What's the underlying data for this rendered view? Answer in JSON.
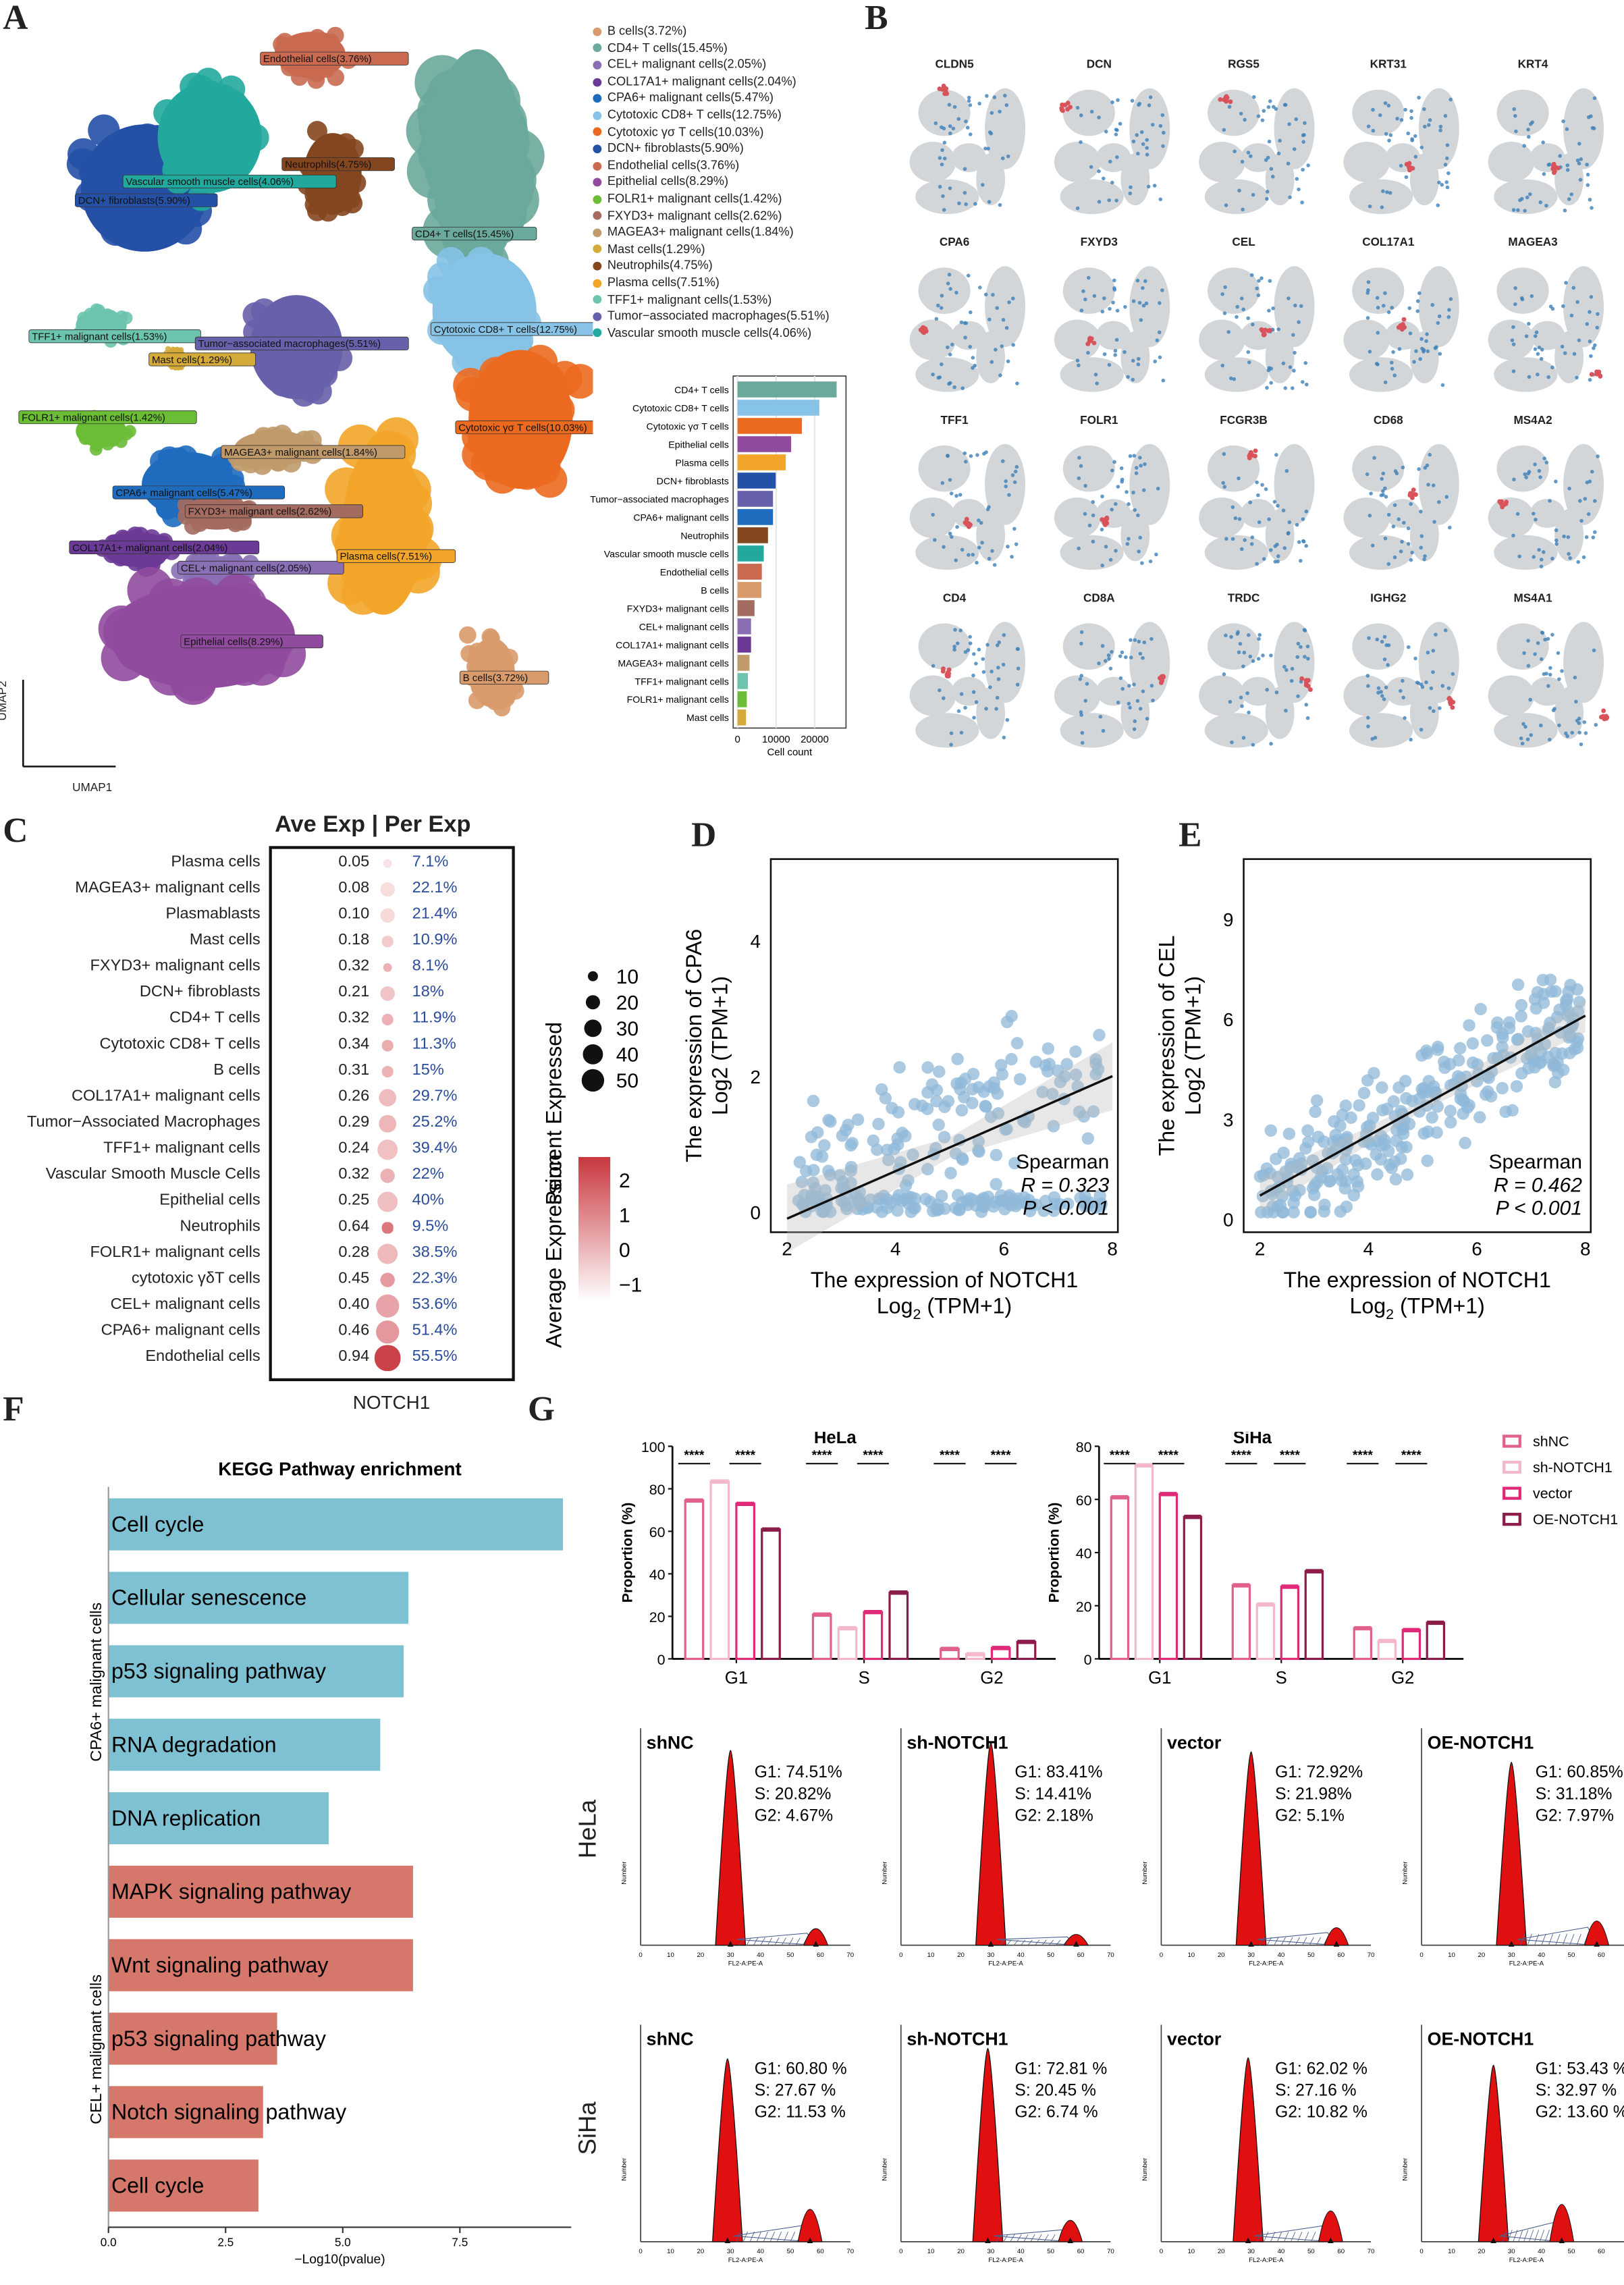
{
  "panel_labels": [
    "A",
    "B",
    "C",
    "D",
    "E",
    "F",
    "G"
  ],
  "panelA": {
    "umap_x_label": "UMAP1",
    "umap_y_label": "UMAP2",
    "clusters": [
      {
        "name": "B cells",
        "pct": "3.72%",
        "label": "B cells(3.72%)",
        "color": "#d99a6c"
      },
      {
        "name": "CD4+ T cells",
        "pct": "15.45%",
        "label": "CD4+ T cells(15.45%)",
        "color": "#6aa99b"
      },
      {
        "name": "CEL+ malignant cells",
        "pct": "2.05%",
        "label": "CEL+ malignant cells(2.05%)",
        "color": "#8a6fb5"
      },
      {
        "name": "COL17A1+ malignant cells",
        "pct": "2.04%",
        "label": "COL17A1+ malignant cells(2.04%)",
        "color": "#6b3a96"
      },
      {
        "name": "CPA6+ malignant cells",
        "pct": "5.47%",
        "label": "CPA6+ malignant cells(5.47%)",
        "color": "#1f6cbf"
      },
      {
        "name": "Cytotoxic CD8+ T cells",
        "pct": "12.75%",
        "label": "Cytotoxic CD8+ T cells(12.75%)",
        "color": "#86c3e6"
      },
      {
        "name": "Cytotoxic γσ T cells",
        "pct": "10.03%",
        "label": "Cytotoxic γσ T cells(10.03%)",
        "color": "#ec6a1f"
      },
      {
        "name": "DCN+ fibroblasts",
        "pct": "5.90%",
        "label": "DCN+ fibroblasts(5.90%)",
        "color": "#2450a6"
      },
      {
        "name": "Endothelial cells",
        "pct": "3.76%",
        "label": "Endothelial cells(3.76%)",
        "color": "#c96a50"
      },
      {
        "name": "Epithelial cells",
        "pct": "8.29%",
        "label": "Epithelial cells(8.29%)",
        "color": "#914b9e"
      },
      {
        "name": "FOLR1+ malignant cells",
        "pct": "1.42%",
        "label": "FOLR1+ malignant cells(1.42%)",
        "color": "#6bbd36"
      },
      {
        "name": "FXYD3+ malignant cells",
        "pct": "2.62%",
        "label": "FXYD3+ malignant cells(2.62%)",
        "color": "#a46c60"
      },
      {
        "name": "MAGEA3+ malignant cells",
        "pct": "1.84%",
        "label": "MAGEA3+ malignant cells(1.84%)",
        "color": "#c09a6a"
      },
      {
        "name": "Mast cells",
        "pct": "1.29%",
        "label": "Mast cells(1.29%)",
        "color": "#d4aa3a"
      },
      {
        "name": "Neutrophils",
        "pct": "4.75%",
        "label": "Neutrophils(4.75%)",
        "color": "#84461f"
      },
      {
        "name": "Plasma cells",
        "pct": "7.51%",
        "label": "Plasma cells(7.51%)",
        "color": "#f3a529"
      },
      {
        "name": "TFF1+ malignant cells",
        "pct": "1.53%",
        "label": "TFF1+ malignant cells(1.53%)",
        "color": "#6cc4ae"
      },
      {
        "name": "Tumor-associated macrophages",
        "pct": "5.51%",
        "label": "Tumor−associated macrophages(5.51%)",
        "color": "#6761ab"
      },
      {
        "name": "Vascular smooth muscle cells",
        "pct": "4.06%",
        "label": "Vascular smooth muscle cells(4.06%)",
        "color": "#22a89c"
      }
    ]
  },
  "chart_data": [
    {
      "id": "A-bar",
      "type": "bar",
      "orientation": "horizontal",
      "xlabel": "Cell count",
      "xticks": [
        "0",
        "10000",
        "20000"
      ],
      "xlim": [
        0,
        27000
      ],
      "categories": [
        "CD4+ T cells",
        "Cytotoxic CD8+ T cells",
        "Cytotoxic γσ T cells",
        "Epithelial cells",
        "Plasma cells",
        "DCN+ fibroblasts",
        "Tumor−associated macrophages",
        "CPA6+ malignant cells",
        "Neutrophils",
        "Vascular smooth muscle cells",
        "Endothelial cells",
        "B cells",
        "FXYD3+ malignant cells",
        "CEL+ malignant cells",
        "COL17A1+ malignant cells",
        "MAGEA3+ malignant cells",
        "TFF1+ malignant cells",
        "FOLR1+ malignant cells",
        "Mast cells"
      ],
      "values": [
        25700,
        21200,
        16700,
        13900,
        12500,
        9900,
        9200,
        9200,
        7900,
        6800,
        6300,
        6200,
        4400,
        3500,
        3500,
        3100,
        2700,
        2400,
        2200
      ],
      "colors": [
        "#6aa99b",
        "#86c3e6",
        "#ec6a1f",
        "#914b9e",
        "#f3a529",
        "#2450a6",
        "#6761ab",
        "#1f6cbf",
        "#84461f",
        "#22a89c",
        "#c96a50",
        "#d99a6c",
        "#a46c60",
        "#8a6fb5",
        "#6b3a96",
        "#c09a6a",
        "#6cc4ae",
        "#6bbd36",
        "#d4aa3a"
      ]
    },
    {
      "id": "B-features",
      "type": "scatter",
      "genes": [
        "CLDN5",
        "DCN",
        "RGS5",
        "KRT31",
        "KRT4",
        "CPA6",
        "FXYD3",
        "CEL",
        "COL17A1",
        "MAGEA3",
        "TFF1",
        "FOLR1",
        "FCGR3B",
        "CD68",
        "MS4A2",
        "CD4",
        "CD8A",
        "TRDC",
        "IGHG2",
        "MS4A1"
      ]
    },
    {
      "id": "C-dotplot",
      "type": "scatter",
      "title": "Ave Exp | Per Exp",
      "xlabel": "NOTCH1",
      "rows": [
        {
          "cell": "Plasma cells",
          "ave": "0.05",
          "per": "7.1%",
          "ave_v": 0.05,
          "per_v": 7.1
        },
        {
          "cell": "MAGEA3+ malignant cells",
          "ave": "0.08",
          "per": "22.1%",
          "ave_v": 0.08,
          "per_v": 22.1
        },
        {
          "cell": "Plasmablasts",
          "ave": "0.10",
          "per": "21.4%",
          "ave_v": 0.1,
          "per_v": 21.4
        },
        {
          "cell": "Mast cells",
          "ave": "0.18",
          "per": "10.9%",
          "ave_v": 0.18,
          "per_v": 10.9
        },
        {
          "cell": "FXYD3+ malignant cells",
          "ave": "0.32",
          "per": "8.1%",
          "ave_v": 0.32,
          "per_v": 8.1
        },
        {
          "cell": "DCN+ fibroblasts",
          "ave": "0.21",
          "per": "18%",
          "ave_v": 0.21,
          "per_v": 18
        },
        {
          "cell": "CD4+ T cells",
          "ave": "0.32",
          "per": "11.9%",
          "ave_v": 0.32,
          "per_v": 11.9
        },
        {
          "cell": "Cytotoxic CD8+ T cells",
          "ave": "0.34",
          "per": "11.3%",
          "ave_v": 0.34,
          "per_v": 11.3
        },
        {
          "cell": "B cells",
          "ave": "0.31",
          "per": "15%",
          "ave_v": 0.31,
          "per_v": 15
        },
        {
          "cell": "COL17A1+ malignant cells",
          "ave": "0.26",
          "per": "29.7%",
          "ave_v": 0.26,
          "per_v": 29.7
        },
        {
          "cell": "Tumor−Associated Macrophages",
          "ave": "0.29",
          "per": "25.2%",
          "ave_v": 0.29,
          "per_v": 25.2
        },
        {
          "cell": "TFF1+ malignant cells",
          "ave": "0.24",
          "per": "39.4%",
          "ave_v": 0.24,
          "per_v": 39.4
        },
        {
          "cell": "Vascular Smooth Muscle Cells",
          "ave": "0.32",
          "per": "22%",
          "ave_v": 0.32,
          "per_v": 22
        },
        {
          "cell": "Epithelial cells",
          "ave": "0.25",
          "per": "40%",
          "ave_v": 0.25,
          "per_v": 40
        },
        {
          "cell": "Neutrophils",
          "ave": "0.64",
          "per": "9.5%",
          "ave_v": 0.64,
          "per_v": 9.5
        },
        {
          "cell": "FOLR1+ malignant cells",
          "ave": "0.28",
          "per": "38.5%",
          "ave_v": 0.28,
          "per_v": 38.5
        },
        {
          "cell": "cytotoxic γδT cells",
          "ave": "0.45",
          "per": "22.3%",
          "ave_v": 0.45,
          "per_v": 22.3
        },
        {
          "cell": "CEL+ malignant cells",
          "ave": "0.40",
          "per": "53.6%",
          "ave_v": 0.4,
          "per_v": 53.6
        },
        {
          "cell": "CPA6+ malignant cells",
          "ave": "0.46",
          "per": "51.4%",
          "ave_v": 0.46,
          "per_v": 51.4
        },
        {
          "cell": "Endothelial cells",
          "ave": "0.94",
          "per": "55.5%",
          "ave_v": 0.94,
          "per_v": 55.5
        }
      ],
      "size_legend_title": "Percent Expressed",
      "size_legend": [
        "10",
        "20",
        "30",
        "40",
        "50"
      ],
      "color_legend_title": "Average Expression",
      "color_legend": [
        "2",
        "1",
        "0",
        "−1"
      ]
    },
    {
      "id": "D-scatter",
      "type": "scatter",
      "xlabel": "The expression of NOTCH1",
      "xlabel2": "Log",
      "xlabel_sub": "2",
      "xlabel_tail": " (TPM+1)",
      "ylabel": "The expression of CPA6",
      "ylabel2": "Log2 (TPM+1)",
      "xticks": [
        "2",
        "4",
        "6",
        "8"
      ],
      "yticks": [
        "0",
        "2",
        "4"
      ],
      "xlim": [
        1.7,
        8.1
      ],
      "ylim": [
        -0.3,
        5.2
      ],
      "stat_method": "Spearman",
      "r_text": "R = 0.323",
      "p_text": "P < 0.001",
      "fit": {
        "x": [
          2,
          8
        ],
        "y": [
          -0.1,
          2.0
        ]
      }
    },
    {
      "id": "E-scatter",
      "type": "scatter",
      "xlabel": "The expression of NOTCH1",
      "xlabel2": "Log",
      "xlabel_sub": "2",
      "xlabel_tail": " (TPM+1)",
      "ylabel": "The expression of CEL",
      "ylabel2": "Log2 (TPM+1)",
      "xticks": [
        "2",
        "4",
        "6",
        "8"
      ],
      "yticks": [
        "0",
        "3",
        "6",
        "9"
      ],
      "xlim": [
        1.7,
        8.1
      ],
      "ylim": [
        -0.4,
        10.8
      ],
      "stat_method": "Spearman",
      "r_text": "R = 0.462",
      "p_text": "P < 0.001",
      "fit": {
        "x": [
          2,
          8
        ],
        "y": [
          0.7,
          6.1
        ]
      }
    },
    {
      "id": "F-kegg",
      "type": "bar",
      "orientation": "horizontal",
      "title": "KEGG Pathway enrichment",
      "xlabel": "−Log10(pvalue)",
      "xticks": [
        "0.0",
        "2.5",
        "5.0",
        "7.5"
      ],
      "xlim": [
        0,
        10
      ],
      "groups": [
        {
          "name": "CPA6+ malignant cells",
          "color": "#7ec1d3",
          "pathways": [
            "Cell cycle",
            "Cellular senescence",
            "p53 signaling pathway",
            "RNA degradation",
            "DNA replication"
          ],
          "values": [
            9.7,
            6.4,
            6.3,
            5.8,
            4.7
          ]
        },
        {
          "name": "CEL+ malignant cells",
          "color": "#d5776a",
          "pathways": [
            "MAPK signaling pathway",
            "Wnt signaling pathway",
            "p53 signaling pathway",
            "Notch signaling pathway",
            "Cell cycle"
          ],
          "values": [
            6.5,
            6.5,
            3.6,
            3.3,
            3.2
          ]
        }
      ]
    },
    {
      "id": "G-bars",
      "type": "bar",
      "ylabel": "Proportion (%)",
      "categories": [
        "G1",
        "S",
        "G2"
      ],
      "significance": "****",
      "legend": [
        {
          "name": "shNC",
          "color": "#e0628a"
        },
        {
          "name": "sh-NOTCH1",
          "color": "#f4b8cc"
        },
        {
          "name": "vector",
          "color": "#e02a78"
        },
        {
          "name": "OE-NOTCH1",
          "color": "#8c1c4a"
        }
      ],
      "panels": [
        {
          "title": "HeLa",
          "yticks": [
            "0",
            "20",
            "40",
            "60",
            "80",
            "100"
          ],
          "ylim": [
            0,
            100
          ],
          "series": [
            {
              "name": "shNC",
              "values": [
                74.51,
                20.82,
                4.67
              ]
            },
            {
              "name": "sh-NOTCH1",
              "values": [
                83.41,
                14.41,
                2.18
              ]
            },
            {
              "name": "vector",
              "values": [
                72.92,
                21.98,
                5.1
              ]
            },
            {
              "name": "OE-NOTCH1",
              "values": [
                60.85,
                31.18,
                7.97
              ]
            }
          ]
        },
        {
          "title": "SiHa",
          "yticks": [
            "0",
            "20",
            "40",
            "60",
            "80"
          ],
          "ylim": [
            0,
            80
          ],
          "series": [
            {
              "name": "shNC",
              "values": [
                60.8,
                27.67,
                11.53
              ]
            },
            {
              "name": "sh-NOTCH1",
              "values": [
                72.81,
                20.45,
                6.74
              ]
            },
            {
              "name": "vector",
              "values": [
                62.02,
                27.16,
                10.82
              ]
            },
            {
              "name": "OE-NOTCH1",
              "values": [
                53.43,
                32.97,
                13.6
              ]
            }
          ]
        }
      ]
    },
    {
      "id": "G-flow",
      "type": "area",
      "xlabel": "FL2-A:PE-A",
      "ylabel": "Number",
      "xticks": [
        "0",
        "10",
        "20",
        "30",
        "40",
        "50",
        "60",
        "70"
      ],
      "rows": [
        {
          "cell_line": "HeLa",
          "samples": [
            {
              "name": "shNC",
              "g1": "G1: 74.51%",
              "s": "S: 20.82%",
              "g2": "G2: 4.67%",
              "g1_v": 74.51,
              "s_v": 20.82,
              "g2_v": 4.67
            },
            {
              "name": "sh-NOTCH1",
              "g1": "G1: 83.41%",
              "s": "S: 14.41%",
              "g2": "G2: 2.18%",
              "g1_v": 83.41,
              "s_v": 14.41,
              "g2_v": 2.18
            },
            {
              "name": "vector",
              "g1": "G1: 72.92%",
              "s": "S: 21.98%",
              "g2": "G2: 5.1%",
              "g1_v": 72.92,
              "s_v": 21.98,
              "g2_v": 5.1
            },
            {
              "name": "OE-NOTCH1",
              "g1": "G1: 60.85%",
              "s": "S: 31.18%",
              "g2": "G2: 7.97%",
              "g1_v": 60.85,
              "s_v": 31.18,
              "g2_v": 7.97
            }
          ]
        },
        {
          "cell_line": "SiHa",
          "samples": [
            {
              "name": "shNC",
              "g1": "G1: 60.80 %",
              "s": "S: 27.67 %",
              "g2": "G2: 11.53 %",
              "g1_v": 60.8,
              "s_v": 27.67,
              "g2_v": 11.53
            },
            {
              "name": "sh-NOTCH1",
              "g1": "G1: 72.81 %",
              "s": "S: 20.45 %",
              "g2": "G2: 6.74 %",
              "g1_v": 72.81,
              "s_v": 20.45,
              "g2_v": 6.74
            },
            {
              "name": "vector",
              "g1": "G1: 62.02 %",
              "s": "S: 27.16 %",
              "g2": "G2: 10.82 %",
              "g1_v": 62.02,
              "s_v": 27.16,
              "g2_v": 10.82
            },
            {
              "name": "OE-NOTCH1",
              "g1": "G1: 53.43 %",
              "s": "S: 32.97 %",
              "g2": "G2: 13.60 %",
              "g1_v": 53.43,
              "s_v": 32.97,
              "g2_v": 13.6
            }
          ]
        }
      ]
    }
  ]
}
